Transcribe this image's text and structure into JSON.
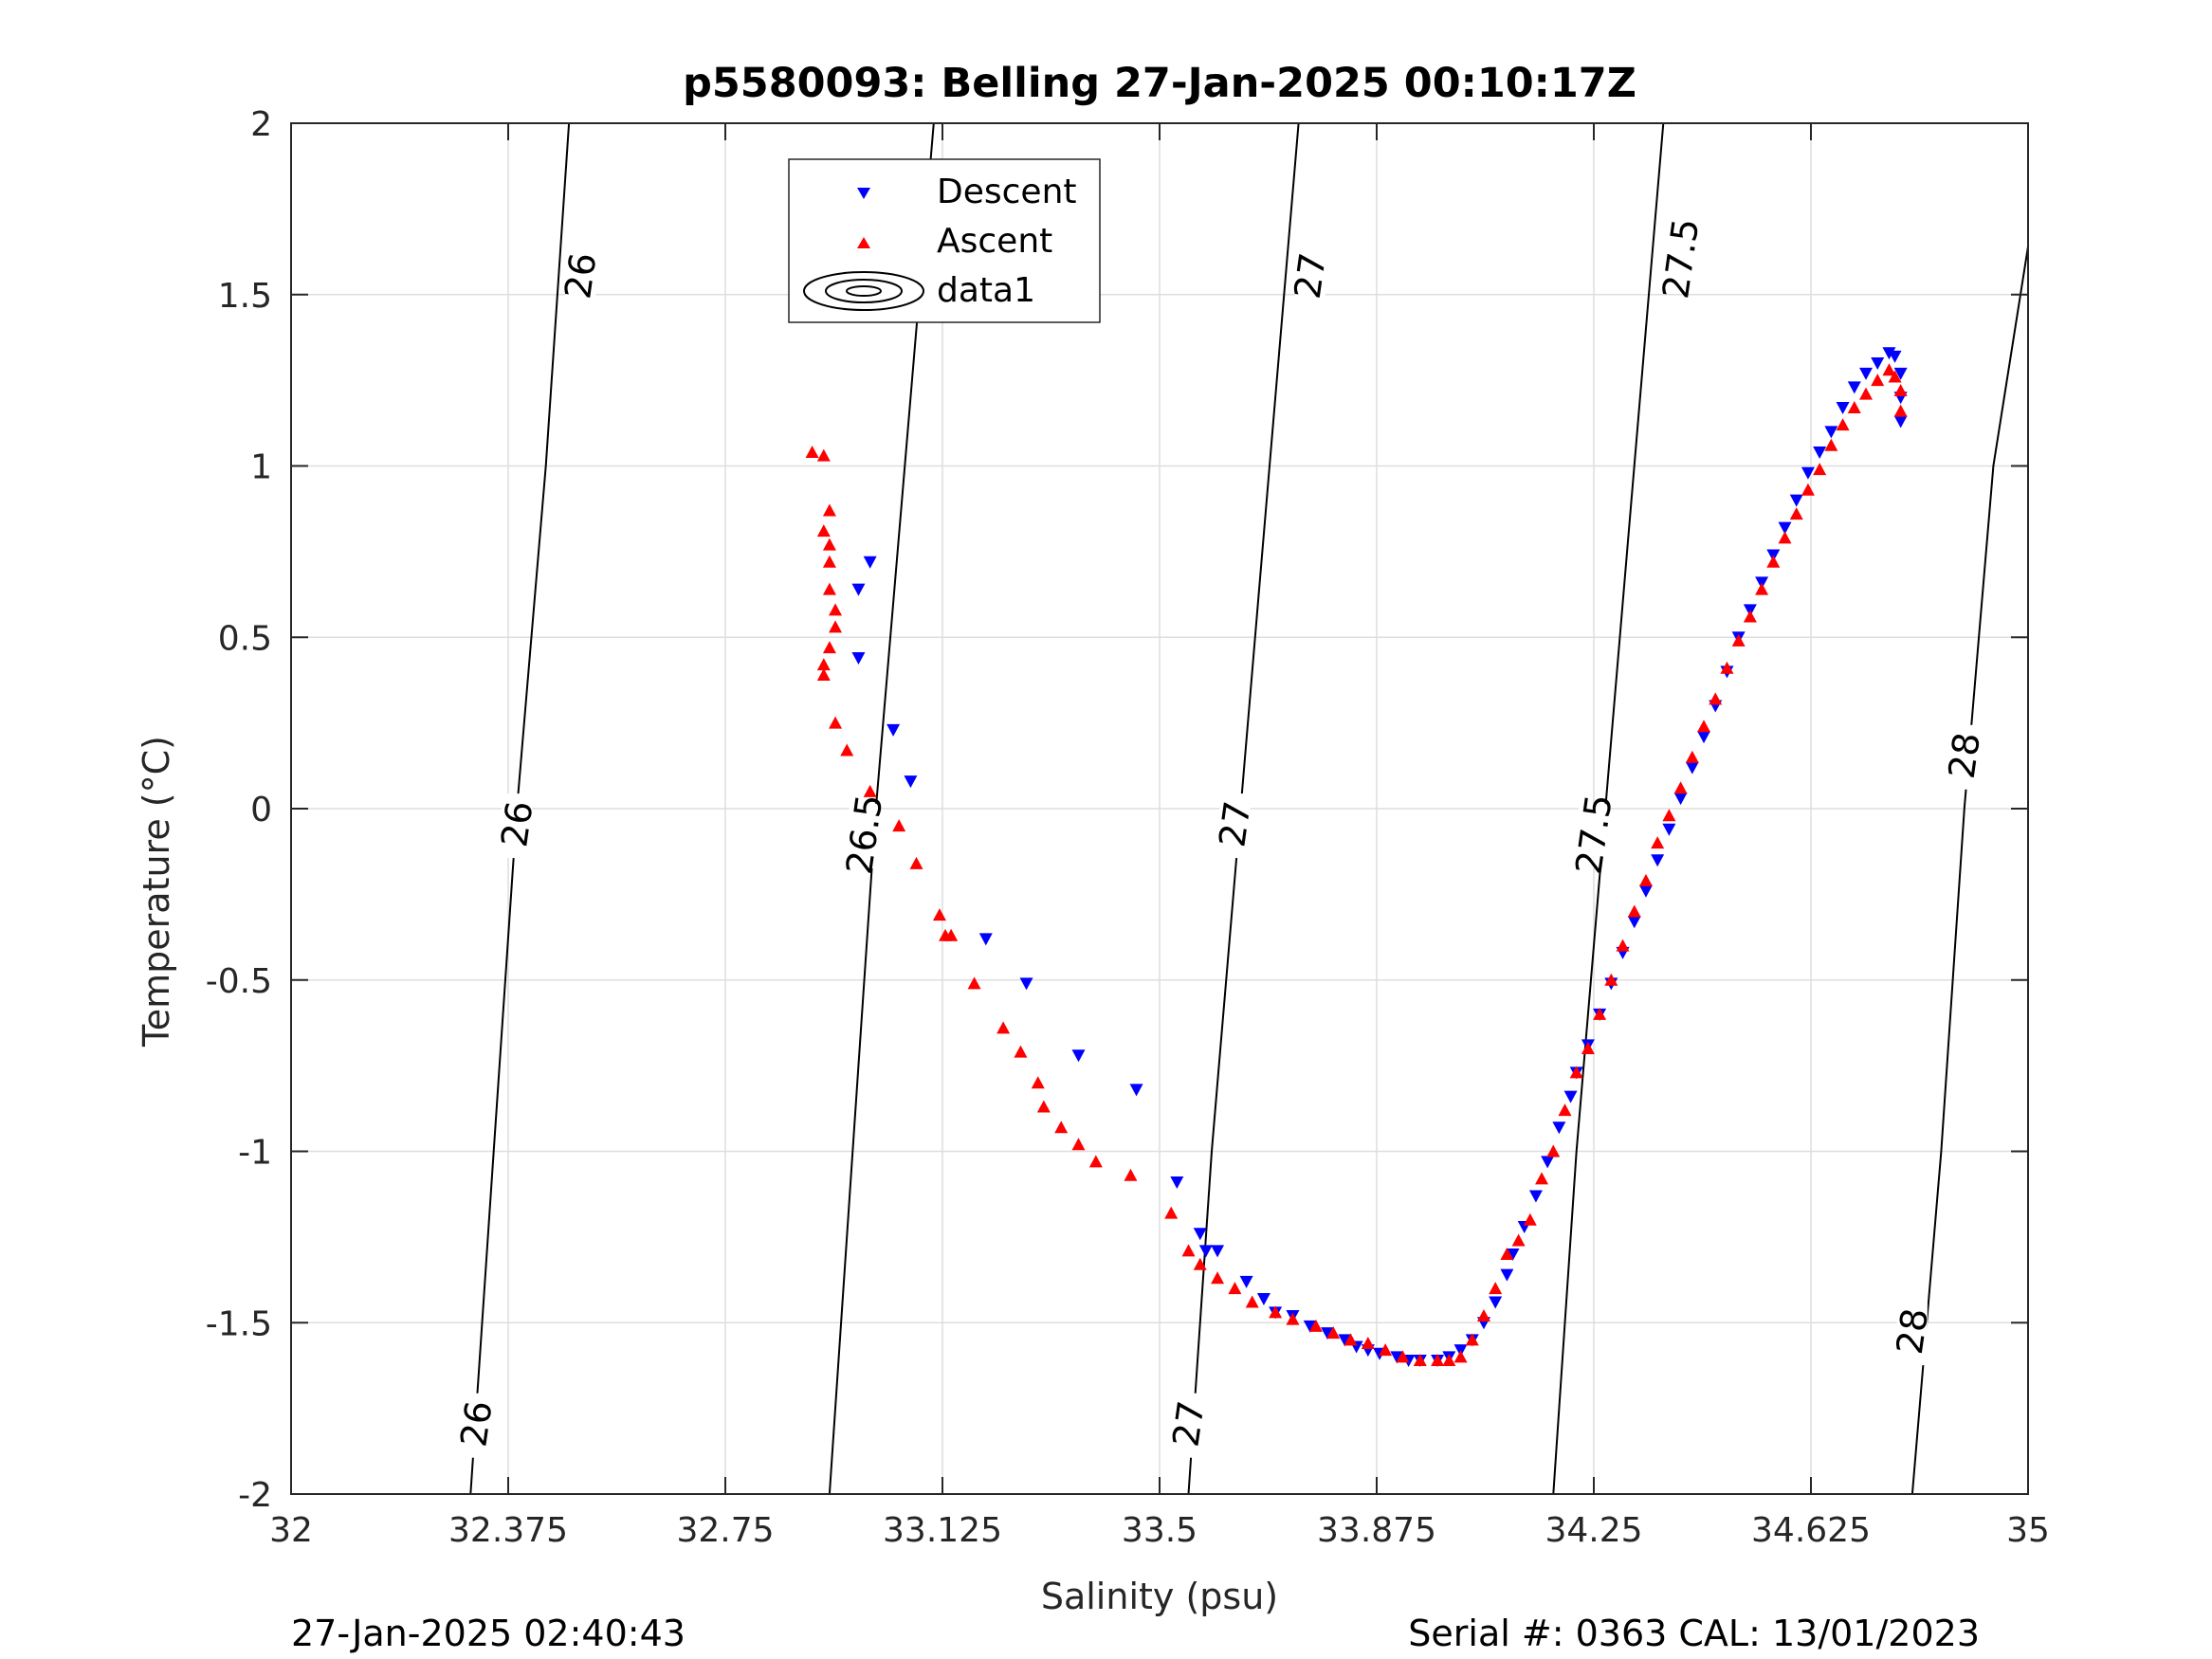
{
  "chart_data": {
    "type": "scatter",
    "title": "p5580093: Belling 27-Jan-2025 00:10:17Z",
    "xlabel": "Salinity (psu)",
    "ylabel": "Temperature (°C)",
    "xlim": [
      32,
      35
    ],
    "ylim": [
      -2,
      2
    ],
    "xticks": [
      "32",
      "32.375",
      "32.75",
      "33.125",
      "33.5",
      "33.875",
      "34.25",
      "34.625",
      "35"
    ],
    "yticks": [
      "-2",
      "-1.5",
      "-1",
      "-0.5",
      "0",
      "0.5",
      "1",
      "1.5",
      "2"
    ],
    "grid": true,
    "legend_position": "top-center",
    "legend": [
      "Descent",
      "Ascent",
      "data1"
    ],
    "series": [
      {
        "name": "Descent",
        "marker": "triangle-down",
        "color": "#0000ff",
        "points": [
          [
            33.0,
            0.72
          ],
          [
            32.98,
            0.64
          ],
          [
            32.98,
            0.44
          ],
          [
            33.04,
            0.23
          ],
          [
            33.07,
            0.08
          ],
          [
            33.2,
            -0.38
          ],
          [
            33.27,
            -0.51
          ],
          [
            33.36,
            -0.72
          ],
          [
            33.46,
            -0.82
          ],
          [
            33.53,
            -1.09
          ],
          [
            33.57,
            -1.24
          ],
          [
            33.58,
            -1.29
          ],
          [
            33.6,
            -1.29
          ],
          [
            33.65,
            -1.38
          ],
          [
            33.68,
            -1.43
          ],
          [
            33.7,
            -1.47
          ],
          [
            33.73,
            -1.48
          ],
          [
            33.76,
            -1.51
          ],
          [
            33.79,
            -1.53
          ],
          [
            33.82,
            -1.55
          ],
          [
            33.84,
            -1.57
          ],
          [
            33.86,
            -1.58
          ],
          [
            33.88,
            -1.59
          ],
          [
            33.91,
            -1.6
          ],
          [
            33.93,
            -1.61
          ],
          [
            33.95,
            -1.61
          ],
          [
            33.98,
            -1.61
          ],
          [
            34.0,
            -1.6
          ],
          [
            34.02,
            -1.58
          ],
          [
            34.04,
            -1.55
          ],
          [
            34.06,
            -1.5
          ],
          [
            34.08,
            -1.44
          ],
          [
            34.1,
            -1.36
          ],
          [
            34.11,
            -1.3
          ],
          [
            34.13,
            -1.22
          ],
          [
            34.15,
            -1.13
          ],
          [
            34.17,
            -1.03
          ],
          [
            34.19,
            -0.93
          ],
          [
            34.21,
            -0.84
          ],
          [
            34.22,
            -0.77
          ],
          [
            34.24,
            -0.69
          ],
          [
            34.26,
            -0.6
          ],
          [
            34.28,
            -0.51
          ],
          [
            34.3,
            -0.42
          ],
          [
            34.32,
            -0.33
          ],
          [
            34.34,
            -0.24
          ],
          [
            34.36,
            -0.15
          ],
          [
            34.38,
            -0.06
          ],
          [
            34.4,
            0.03
          ],
          [
            34.42,
            0.12
          ],
          [
            34.44,
            0.21
          ],
          [
            34.46,
            0.3
          ],
          [
            34.48,
            0.4
          ],
          [
            34.5,
            0.5
          ],
          [
            34.52,
            0.58
          ],
          [
            34.54,
            0.66
          ],
          [
            34.56,
            0.74
          ],
          [
            34.58,
            0.82
          ],
          [
            34.6,
            0.9
          ],
          [
            34.62,
            0.98
          ],
          [
            34.64,
            1.04
          ],
          [
            34.66,
            1.1
          ],
          [
            34.68,
            1.17
          ],
          [
            34.7,
            1.23
          ],
          [
            34.72,
            1.27
          ],
          [
            34.74,
            1.3
          ],
          [
            34.76,
            1.33
          ],
          [
            34.77,
            1.32
          ],
          [
            34.78,
            1.27
          ],
          [
            34.78,
            1.2
          ],
          [
            34.78,
            1.13
          ]
        ]
      },
      {
        "name": "Ascent",
        "marker": "triangle-up",
        "color": "#ff0000",
        "points": [
          [
            32.9,
            1.04
          ],
          [
            32.92,
            1.03
          ],
          [
            32.93,
            0.87
          ],
          [
            32.92,
            0.81
          ],
          [
            32.93,
            0.77
          ],
          [
            32.93,
            0.72
          ],
          [
            32.93,
            0.64
          ],
          [
            32.94,
            0.58
          ],
          [
            32.94,
            0.53
          ],
          [
            32.93,
            0.47
          ],
          [
            32.92,
            0.42
          ],
          [
            32.92,
            0.39
          ],
          [
            32.94,
            0.25
          ],
          [
            32.96,
            0.17
          ],
          [
            33.0,
            0.05
          ],
          [
            33.05,
            -0.05
          ],
          [
            33.08,
            -0.16
          ],
          [
            33.12,
            -0.31
          ],
          [
            33.13,
            -0.37
          ],
          [
            33.14,
            -0.37
          ],
          [
            33.18,
            -0.51
          ],
          [
            33.23,
            -0.64
          ],
          [
            33.26,
            -0.71
          ],
          [
            33.29,
            -0.8
          ],
          [
            33.3,
            -0.87
          ],
          [
            33.33,
            -0.93
          ],
          [
            33.36,
            -0.98
          ],
          [
            33.39,
            -1.03
          ],
          [
            33.45,
            -1.07
          ],
          [
            33.52,
            -1.18
          ],
          [
            33.55,
            -1.29
          ],
          [
            33.57,
            -1.33
          ],
          [
            33.6,
            -1.37
          ],
          [
            33.63,
            -1.4
          ],
          [
            33.66,
            -1.44
          ],
          [
            33.7,
            -1.47
          ],
          [
            33.73,
            -1.49
          ],
          [
            33.77,
            -1.51
          ],
          [
            33.8,
            -1.53
          ],
          [
            33.83,
            -1.55
          ],
          [
            33.86,
            -1.56
          ],
          [
            33.89,
            -1.58
          ],
          [
            33.92,
            -1.6
          ],
          [
            33.95,
            -1.61
          ],
          [
            33.98,
            -1.61
          ],
          [
            34.0,
            -1.61
          ],
          [
            34.02,
            -1.6
          ],
          [
            34.04,
            -1.55
          ],
          [
            34.06,
            -1.48
          ],
          [
            34.08,
            -1.4
          ],
          [
            34.1,
            -1.3
          ],
          [
            34.12,
            -1.26
          ],
          [
            34.14,
            -1.2
          ],
          [
            34.16,
            -1.08
          ],
          [
            34.18,
            -1.0
          ],
          [
            34.2,
            -0.88
          ],
          [
            34.22,
            -0.77
          ],
          [
            34.24,
            -0.7
          ],
          [
            34.26,
            -0.6
          ],
          [
            34.28,
            -0.5
          ],
          [
            34.3,
            -0.4
          ],
          [
            34.32,
            -0.3
          ],
          [
            34.34,
            -0.21
          ],
          [
            34.36,
            -0.1
          ],
          [
            34.38,
            -0.02
          ],
          [
            34.4,
            0.06
          ],
          [
            34.42,
            0.15
          ],
          [
            34.44,
            0.24
          ],
          [
            34.46,
            0.32
          ],
          [
            34.48,
            0.41
          ],
          [
            34.5,
            0.49
          ],
          [
            34.52,
            0.56
          ],
          [
            34.54,
            0.64
          ],
          [
            34.56,
            0.72
          ],
          [
            34.58,
            0.79
          ],
          [
            34.6,
            0.86
          ],
          [
            34.62,
            0.93
          ],
          [
            34.64,
            0.99
          ],
          [
            34.66,
            1.06
          ],
          [
            34.68,
            1.12
          ],
          [
            34.7,
            1.17
          ],
          [
            34.72,
            1.21
          ],
          [
            34.74,
            1.25
          ],
          [
            34.76,
            1.28
          ],
          [
            34.77,
            1.26
          ],
          [
            34.78,
            1.22
          ],
          [
            34.78,
            1.16
          ]
        ]
      }
    ],
    "density_contours": [
      {
        "label": "26",
        "points": [
          [
            32.31,
            -2.0
          ],
          [
            32.35,
            -1.0
          ],
          [
            32.39,
            0.0
          ],
          [
            32.44,
            1.0
          ],
          [
            32.48,
            2.0
          ]
        ]
      },
      {
        "label": "26.5",
        "points": [
          [
            32.93,
            -2.0
          ],
          [
            32.97,
            -1.0
          ],
          [
            33.01,
            0.0
          ],
          [
            33.06,
            1.0
          ],
          [
            33.11,
            2.0
          ]
        ]
      },
      {
        "label": "27",
        "points": [
          [
            33.55,
            -2.0
          ],
          [
            33.59,
            -1.0
          ],
          [
            33.64,
            0.0
          ],
          [
            33.69,
            1.0
          ],
          [
            33.74,
            2.0
          ]
        ]
      },
      {
        "label": "27.5",
        "points": [
          [
            34.18,
            -2.0
          ],
          [
            34.22,
            -1.0
          ],
          [
            34.27,
            0.0
          ],
          [
            34.32,
            1.0
          ],
          [
            34.37,
            2.0
          ]
        ]
      },
      {
        "label": "28",
        "points": [
          [
            34.8,
            -2.0
          ],
          [
            34.85,
            -1.0
          ],
          [
            34.89,
            0.0
          ],
          [
            34.94,
            1.0
          ],
          [
            35.0,
            1.64
          ]
        ]
      }
    ],
    "contour_label_points": [
      {
        "label": "26",
        "s": 32.32,
        "t": -1.8
      },
      {
        "label": "26",
        "s": 32.39,
        "t": -0.05
      },
      {
        "label": "26",
        "s": 32.5,
        "t": 1.55
      },
      {
        "label": "26.5",
        "s": 32.99,
        "t": -0.08
      },
      {
        "label": "26.5",
        "s": 33.12,
        "t": 1.55
      },
      {
        "label": "27",
        "s": 33.55,
        "t": -1.8
      },
      {
        "label": "27",
        "s": 33.63,
        "t": -0.05
      },
      {
        "label": "27",
        "s": 33.76,
        "t": 1.55
      },
      {
        "label": "27.5",
        "s": 34.25,
        "t": -0.08
      },
      {
        "label": "27.5",
        "s": 34.4,
        "t": 1.6
      },
      {
        "label": "28",
        "s": 34.8,
        "t": -1.53
      },
      {
        "label": "28",
        "s": 34.89,
        "t": 0.15
      }
    ]
  },
  "footer": {
    "timestamp": "27-Jan-2025 02:40:43",
    "serial": "Serial #: 0363  CAL: 13/01/2023"
  },
  "colors": {
    "descent": "#0000ff",
    "ascent": "#ff0000",
    "contour": "#000000",
    "grid": "#dedede"
  }
}
